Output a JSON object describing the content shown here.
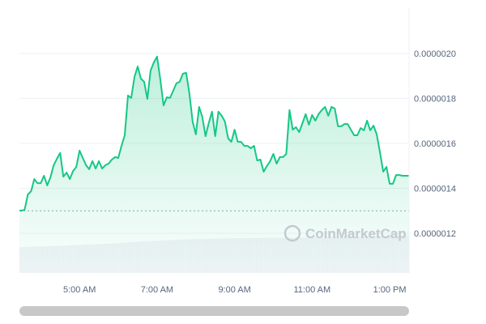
{
  "chart_data": {
    "type": "area",
    "title": "",
    "xlabel": "",
    "ylabel": "",
    "x_ticks": [
      "5:00 AM",
      "7:00 AM",
      "9:00 AM",
      "11:00 AM",
      "1:00 PM"
    ],
    "y_ticks": [
      "0.0000020",
      "0.0000018",
      "0.0000016",
      "0.0000014",
      "0.0000012"
    ],
    "ylim": [
      1.1e-06,
      2.07e-06
    ],
    "xlim": [
      "03:27",
      "13:30"
    ],
    "grid": true,
    "reference_line": 1.3e-06,
    "line_color": "#16c784",
    "watermark": "CoinMarketCap",
    "series": [
      {
        "values": [
          [
            "03:30",
            1.301e-06
          ],
          [
            "03:35",
            1.305e-06
          ],
          [
            "03:40",
            1.373e-06
          ],
          [
            "03:45",
            1.387e-06
          ],
          [
            "03:50",
            1.441e-06
          ],
          [
            "03:55",
            1.423e-06
          ],
          [
            "04:00",
            1.423e-06
          ],
          [
            "04:05",
            1.456e-06
          ],
          [
            "04:10",
            1.413e-06
          ],
          [
            "04:15",
            1.449e-06
          ],
          [
            "04:20",
            1.503e-06
          ],
          [
            "04:25",
            1.532e-06
          ],
          [
            "04:30",
            1.557e-06
          ],
          [
            "04:35",
            1.452e-06
          ],
          [
            "04:40",
            1.47e-06
          ],
          [
            "04:45",
            1.441e-06
          ],
          [
            "04:50",
            1.477e-06
          ],
          [
            "04:55",
            1.495e-06
          ],
          [
            "05:00",
            1.568e-06
          ],
          [
            "05:05",
            1.535e-06
          ],
          [
            "05:10",
            1.503e-06
          ],
          [
            "05:15",
            1.485e-06
          ],
          [
            "05:20",
            1.521e-06
          ],
          [
            "05:25",
            1.488e-06
          ],
          [
            "05:30",
            1.521e-06
          ],
          [
            "05:35",
            1.488e-06
          ],
          [
            "05:40",
            1.503e-06
          ],
          [
            "05:45",
            1.51e-06
          ],
          [
            "05:50",
            1.528e-06
          ],
          [
            "05:55",
            1.539e-06
          ],
          [
            "06:00",
            1.535e-06
          ],
          [
            "06:05",
            1.589e-06
          ],
          [
            "06:10",
            1.636e-06
          ],
          [
            "06:15",
            1.813e-06
          ],
          [
            "06:20",
            1.802e-06
          ],
          [
            "06:25",
            1.895e-06
          ],
          [
            "06:30",
            1.942e-06
          ],
          [
            "06:35",
            1.888e-06
          ],
          [
            "06:40",
            1.874e-06
          ],
          [
            "06:45",
            1.798e-06
          ],
          [
            "06:50",
            1.924e-06
          ],
          [
            "06:55",
            1.96e-06
          ],
          [
            "07:00",
            1.986e-06
          ],
          [
            "07:05",
            1.885e-06
          ],
          [
            "07:10",
            1.769e-06
          ],
          [
            "07:15",
            1.805e-06
          ],
          [
            "07:20",
            1.802e-06
          ],
          [
            "07:25",
            1.834e-06
          ],
          [
            "07:30",
            1.867e-06
          ],
          [
            "07:35",
            1.874e-06
          ],
          [
            "07:40",
            1.91e-06
          ],
          [
            "07:45",
            1.914e-06
          ],
          [
            "07:50",
            1.823e-06
          ],
          [
            "07:55",
            1.697e-06
          ],
          [
            "08:00",
            1.64e-06
          ],
          [
            "08:05",
            1.762e-06
          ],
          [
            "08:10",
            1.719e-06
          ],
          [
            "08:15",
            1.632e-06
          ],
          [
            "08:20",
            1.69e-06
          ],
          [
            "08:25",
            1.741e-06
          ],
          [
            "08:30",
            1.632e-06
          ],
          [
            "08:35",
            1.741e-06
          ],
          [
            "08:40",
            1.723e-06
          ],
          [
            "08:45",
            1.697e-06
          ],
          [
            "08:50",
            1.622e-06
          ],
          [
            "08:55",
            1.607e-06
          ],
          [
            "09:00",
            1.661e-06
          ],
          [
            "09:05",
            1.607e-06
          ],
          [
            "09:10",
            1.607e-06
          ],
          [
            "09:15",
            1.589e-06
          ],
          [
            "09:20",
            1.589e-06
          ],
          [
            "09:25",
            1.578e-06
          ],
          [
            "09:30",
            1.589e-06
          ],
          [
            "09:35",
            1.524e-06
          ],
          [
            "09:40",
            1.528e-06
          ],
          [
            "09:45",
            1.474e-06
          ],
          [
            "09:50",
            1.499e-06
          ],
          [
            "09:55",
            1.521e-06
          ],
          [
            "10:00",
            1.553e-06
          ],
          [
            "10:05",
            1.51e-06
          ],
          [
            "10:10",
            1.539e-06
          ],
          [
            "10:15",
            1.539e-06
          ],
          [
            "10:20",
            1.553e-06
          ],
          [
            "10:25",
            1.748e-06
          ],
          [
            "10:30",
            1.661e-06
          ],
          [
            "10:35",
            1.672e-06
          ],
          [
            "10:40",
            1.65e-06
          ],
          [
            "10:45",
            1.69e-06
          ],
          [
            "10:50",
            1.73e-06
          ],
          [
            "10:55",
            1.683e-06
          ],
          [
            "11:00",
            1.726e-06
          ],
          [
            "11:05",
            1.701e-06
          ],
          [
            "11:10",
            1.73e-06
          ],
          [
            "11:15",
            1.748e-06
          ],
          [
            "11:20",
            1.762e-06
          ],
          [
            "11:25",
            1.723e-06
          ],
          [
            "11:30",
            1.762e-06
          ],
          [
            "11:35",
            1.755e-06
          ],
          [
            "11:40",
            1.676e-06
          ],
          [
            "11:45",
            1.676e-06
          ],
          [
            "11:50",
            1.686e-06
          ],
          [
            "11:55",
            1.686e-06
          ],
          [
            "12:00",
            1.661e-06
          ],
          [
            "12:05",
            1.636e-06
          ],
          [
            "12:10",
            1.636e-06
          ],
          [
            "12:15",
            1.668e-06
          ],
          [
            "12:20",
            1.658e-06
          ],
          [
            "12:25",
            1.701e-06
          ],
          [
            "12:30",
            1.658e-06
          ],
          [
            "12:35",
            1.679e-06
          ],
          [
            "12:40",
            1.64e-06
          ],
          [
            "12:45",
            1.56e-06
          ],
          [
            "12:50",
            1.474e-06
          ],
          [
            "12:55",
            1.495e-06
          ],
          [
            "13:00",
            1.42e-06
          ],
          [
            "13:05",
            1.42e-06
          ],
          [
            "13:10",
            1.459e-06
          ],
          [
            "13:15",
            1.459e-06
          ],
          [
            "13:20",
            1.456e-06
          ]
        ]
      }
    ],
    "volume_relative": [
      0.55,
      0.58,
      0.62,
      0.68,
      0.72,
      0.74,
      0.75,
      0.76,
      0.78,
      0.8
    ]
  }
}
